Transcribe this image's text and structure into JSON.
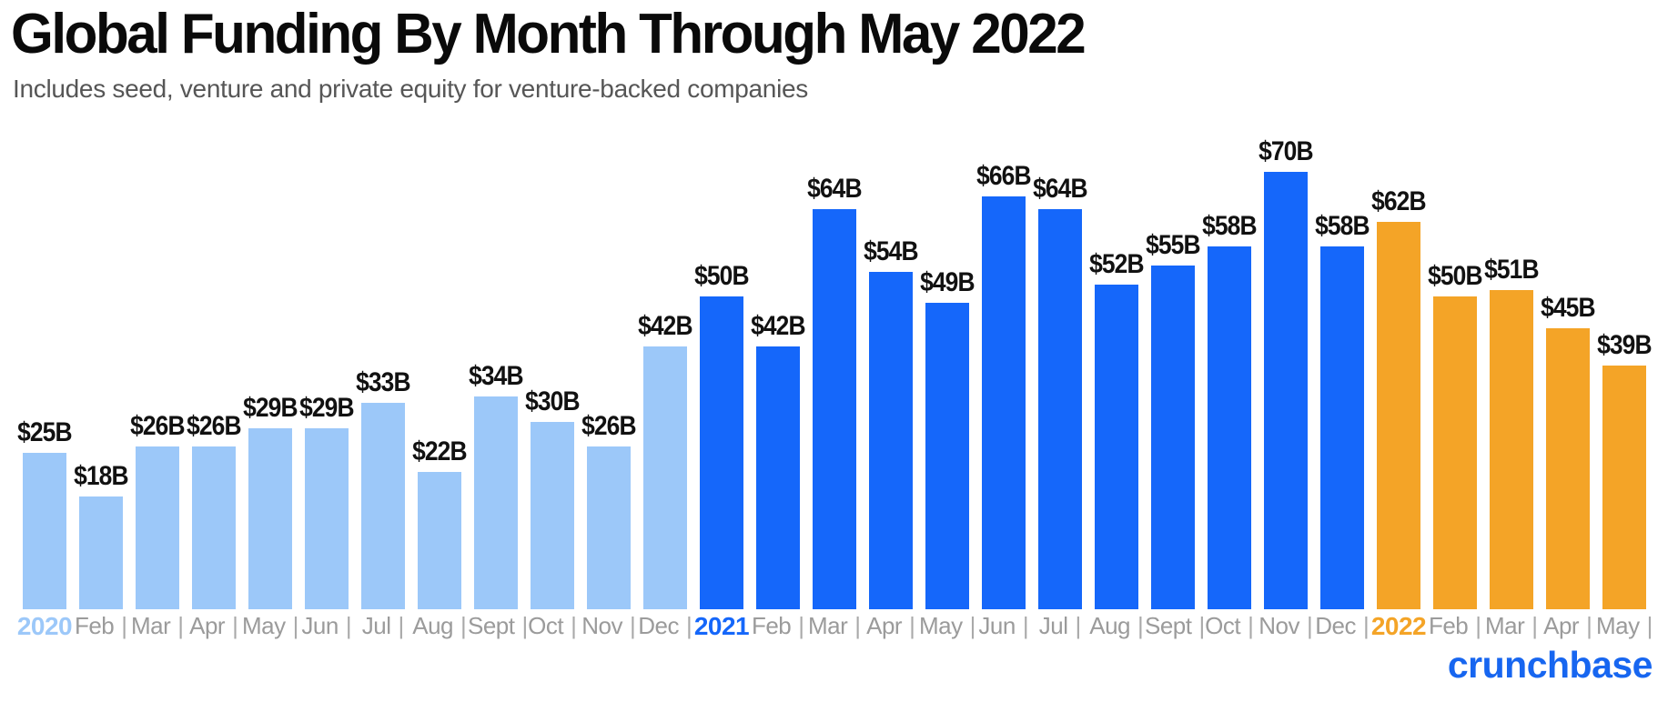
{
  "header": {
    "title": "Global Funding By Month Through May 2022",
    "subtitle": "Includes seed, venture and private equity for venture-backed companies"
  },
  "footer": {
    "logo_text": "crunchbase",
    "logo_color": "#1766f0"
  },
  "chart_data": {
    "type": "bar",
    "title": "Global Funding By Month Through May 2022",
    "subtitle": "Includes seed, venture and private equity for venture-backed companies",
    "unit": "USD billions",
    "ylim": [
      0,
      70
    ],
    "grid": false,
    "legend": "none",
    "axis_separator": "|",
    "axis_text_color": "#9b9b9b",
    "year_colors": {
      "2020": "#9cc8f9",
      "2021": "#1567fa",
      "2022": "#f4a427"
    },
    "categories": [
      "Jan 2020",
      "Feb 2020",
      "Mar 2020",
      "Apr 2020",
      "May 2020",
      "Jun 2020",
      "Jul 2020",
      "Aug 2020",
      "Sept 2020",
      "Oct 2020",
      "Nov 2020",
      "Dec 2020",
      "Jan 2021",
      "Feb 2021",
      "Mar 2021",
      "Apr 2021",
      "May 2021",
      "Jun 2021",
      "Jul 2021",
      "Aug 2021",
      "Sept 2021",
      "Oct 2021",
      "Nov 2021",
      "Dec 2021",
      "Jan 2022",
      "Feb 2022",
      "Mar 2022",
      "Apr 2022",
      "May 2022"
    ],
    "values": [
      25,
      18,
      26,
      26,
      29,
      29,
      33,
      22,
      34,
      30,
      26,
      42,
      50,
      42,
      64,
      54,
      49,
      66,
      64,
      52,
      55,
      58,
      70,
      58,
      62,
      50,
      51,
      45,
      39
    ],
    "bars": [
      {
        "axis_label": "2020",
        "is_year_start": true,
        "year": "2020",
        "value": 25,
        "value_label": "$25B"
      },
      {
        "axis_label": "Feb",
        "is_year_start": false,
        "year": "2020",
        "value": 18,
        "value_label": "$18B"
      },
      {
        "axis_label": "Mar",
        "is_year_start": false,
        "year": "2020",
        "value": 26,
        "value_label": "$26B"
      },
      {
        "axis_label": "Apr",
        "is_year_start": false,
        "year": "2020",
        "value": 26,
        "value_label": "$26B"
      },
      {
        "axis_label": "May",
        "is_year_start": false,
        "year": "2020",
        "value": 29,
        "value_label": "$29B"
      },
      {
        "axis_label": "Jun",
        "is_year_start": false,
        "year": "2020",
        "value": 29,
        "value_label": "$29B"
      },
      {
        "axis_label": "Jul",
        "is_year_start": false,
        "year": "2020",
        "value": 33,
        "value_label": "$33B"
      },
      {
        "axis_label": "Aug",
        "is_year_start": false,
        "year": "2020",
        "value": 22,
        "value_label": "$22B"
      },
      {
        "axis_label": "Sept",
        "is_year_start": false,
        "year": "2020",
        "value": 34,
        "value_label": "$34B"
      },
      {
        "axis_label": "Oct",
        "is_year_start": false,
        "year": "2020",
        "value": 30,
        "value_label": "$30B"
      },
      {
        "axis_label": "Nov",
        "is_year_start": false,
        "year": "2020",
        "value": 26,
        "value_label": "$26B"
      },
      {
        "axis_label": "Dec",
        "is_year_start": false,
        "year": "2020",
        "value": 42,
        "value_label": "$42B"
      },
      {
        "axis_label": "2021",
        "is_year_start": true,
        "year": "2021",
        "value": 50,
        "value_label": "$50B"
      },
      {
        "axis_label": "Feb",
        "is_year_start": false,
        "year": "2021",
        "value": 42,
        "value_label": "$42B"
      },
      {
        "axis_label": "Mar",
        "is_year_start": false,
        "year": "2021",
        "value": 64,
        "value_label": "$64B"
      },
      {
        "axis_label": "Apr",
        "is_year_start": false,
        "year": "2021",
        "value": 54,
        "value_label": "$54B"
      },
      {
        "axis_label": "May",
        "is_year_start": false,
        "year": "2021",
        "value": 49,
        "value_label": "$49B"
      },
      {
        "axis_label": "Jun",
        "is_year_start": false,
        "year": "2021",
        "value": 66,
        "value_label": "$66B"
      },
      {
        "axis_label": "Jul",
        "is_year_start": false,
        "year": "2021",
        "value": 64,
        "value_label": "$64B"
      },
      {
        "axis_label": "Aug",
        "is_year_start": false,
        "year": "2021",
        "value": 52,
        "value_label": "$52B"
      },
      {
        "axis_label": "Sept",
        "is_year_start": false,
        "year": "2021",
        "value": 55,
        "value_label": "$55B"
      },
      {
        "axis_label": "Oct",
        "is_year_start": false,
        "year": "2021",
        "value": 58,
        "value_label": "$58B"
      },
      {
        "axis_label": "Nov",
        "is_year_start": false,
        "year": "2021",
        "value": 70,
        "value_label": "$70B"
      },
      {
        "axis_label": "Dec",
        "is_year_start": false,
        "year": "2021",
        "value": 58,
        "value_label": "$58B"
      },
      {
        "axis_label": "2022",
        "is_year_start": true,
        "year": "2022",
        "value": 62,
        "value_label": "$62B"
      },
      {
        "axis_label": "Feb",
        "is_year_start": false,
        "year": "2022",
        "value": 50,
        "value_label": "$50B"
      },
      {
        "axis_label": "Mar",
        "is_year_start": false,
        "year": "2022",
        "value": 51,
        "value_label": "$51B"
      },
      {
        "axis_label": "Apr",
        "is_year_start": false,
        "year": "2022",
        "value": 45,
        "value_label": "$45B"
      },
      {
        "axis_label": "May",
        "is_year_start": false,
        "year": "2022",
        "value": 39,
        "value_label": "$39B"
      }
    ]
  }
}
